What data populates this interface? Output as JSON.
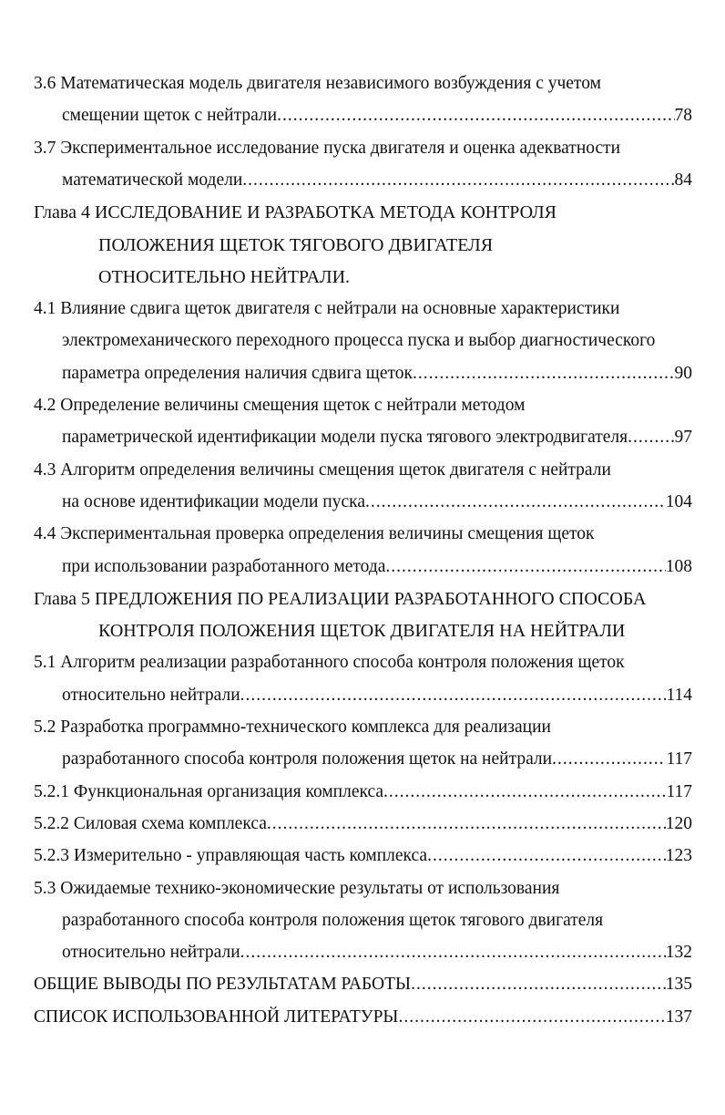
{
  "toc": [
    {
      "lines": [
        "3.6 Математическая модель двигателя независимого возбуждения с учетом",
        "смещении щеток с нейтрали"
      ],
      "page": "78"
    },
    {
      "lines": [
        "3.7 Экспериментальное исследование пуска двигателя и оценка адекватности",
        "математической модели"
      ],
      "page": "84"
    },
    {
      "chapter": true,
      "lines": [
        "Глава 4 ИССЛЕДОВАНИЕ И РАЗРАБОТКА МЕТОДА КОНТРОЛЯ",
        "ПОЛОЖЕНИЯ ЩЕТОК ТЯГОВОГО ДВИГАТЕЛЯ",
        "ОТНОСИТЕЛЬНО НЕЙТРАЛИ."
      ]
    },
    {
      "lines": [
        "4.1 Влияние сдвига щеток двигателя с нейтрали на основные характеристики",
        "электромеханического переходного процесса пуска и выбор диагностического",
        "параметра определения наличия сдвига щеток"
      ],
      "page": "90"
    },
    {
      "lines": [
        "4.2 Определение величины смещения щеток с нейтрали методом",
        "параметрической идентификации модели пуска тягового электродвигателя "
      ],
      "page": "97"
    },
    {
      "lines": [
        "4.3 Алгоритм определения величины смещения щеток двигателя с нейтрали",
        "на основе идентификации модели пуска"
      ],
      "page": "104"
    },
    {
      "lines": [
        "4.4 Экспериментальная проверка определения величины смещения щеток",
        "при использовании разработанного метода"
      ],
      "page": "108"
    },
    {
      "chapter": true,
      "lines": [
        "Глава 5 ПРЕДЛОЖЕНИЯ ПО РЕАЛИЗАЦИИ РАЗРАБОТАННОГО СПОСОБА",
        "КОНТРОЛЯ ПОЛОЖЕНИЯ ЩЕТОК ДВИГАТЕЛЯ НА НЕЙТРАЛИ"
      ]
    },
    {
      "lines": [
        "5.1 Алгоритм реализации разработанного способа контроля положения щеток",
        "относительно нейтрали"
      ],
      "page": "114"
    },
    {
      "lines": [
        "5.2 Разработка программно-технического комплекса для реализации",
        "разработанного способа контроля положения щеток на нейтрали "
      ],
      "page": "117"
    },
    {
      "lines": [
        "5.2.1 Функциональная организация комплекса"
      ],
      "page": "117"
    },
    {
      "lines": [
        "5.2.2 Силовая схема комплекса"
      ],
      "page": "120"
    },
    {
      "lines": [
        "5.2.3 Измерительно - управляющая часть комплекса"
      ],
      "page": "123"
    },
    {
      "lines": [
        "5.3 Ожидаемые технико-экономические результаты от использования",
        "разработанного способа контроля положения щеток тягового двигателя",
        "относительно нейтрали"
      ],
      "page": "132"
    },
    {
      "lines": [
        "ОБЩИЕ ВЫВОДЫ ПО РЕЗУЛЬТАТАМ РАБОТЫ"
      ],
      "page": "135"
    },
    {
      "lines": [
        "СПИСОК ИСПОЛЬЗОВАННОЙ ЛИТЕРАТУРЫ"
      ],
      "page": "137"
    }
  ]
}
